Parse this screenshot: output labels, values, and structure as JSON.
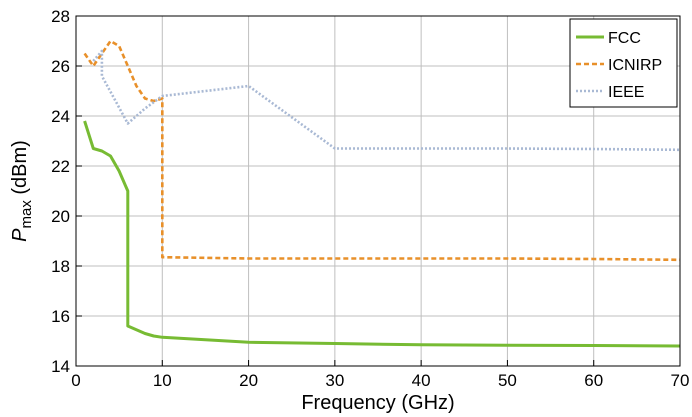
{
  "chart_data": {
    "type": "line",
    "xlabel": "Frequency (GHz)",
    "ylabel_main": "P",
    "ylabel_sub": "max",
    "ylabel_unit": " (dBm)",
    "xlim": [
      0,
      70
    ],
    "ylim": [
      14,
      28
    ],
    "x_ticks": [
      "0",
      "10",
      "20",
      "30",
      "40",
      "50",
      "60",
      "70"
    ],
    "y_ticks": [
      "14",
      "16",
      "18",
      "20",
      "22",
      "24",
      "26",
      "28"
    ],
    "grid": true,
    "legend_position": "top-right",
    "series": [
      {
        "name": "FCC",
        "color": "#77bb33",
        "style": "solid",
        "points": [
          [
            1,
            23.8
          ],
          [
            2,
            22.7
          ],
          [
            3,
            22.6
          ],
          [
            4,
            22.4
          ],
          [
            5,
            21.8
          ],
          [
            6,
            21.0
          ],
          [
            6,
            15.6
          ],
          [
            7,
            15.45
          ],
          [
            8,
            15.3
          ],
          [
            9,
            15.2
          ],
          [
            10,
            15.15
          ],
          [
            15,
            15.05
          ],
          [
            20,
            14.95
          ],
          [
            30,
            14.9
          ],
          [
            40,
            14.85
          ],
          [
            50,
            14.83
          ],
          [
            60,
            14.82
          ],
          [
            70,
            14.8
          ]
        ]
      },
      {
        "name": "ICNIRP",
        "color": "#e8902a",
        "style": "dashed",
        "points": [
          [
            1,
            26.5
          ],
          [
            2,
            26.0
          ],
          [
            3,
            26.5
          ],
          [
            4,
            27.0
          ],
          [
            5,
            26.8
          ],
          [
            6,
            26.0
          ],
          [
            7,
            25.2
          ],
          [
            8,
            24.7
          ],
          [
            9,
            24.6
          ],
          [
            10,
            24.7
          ],
          [
            10,
            18.35
          ],
          [
            20,
            18.3
          ],
          [
            30,
            18.3
          ],
          [
            40,
            18.3
          ],
          [
            50,
            18.3
          ],
          [
            60,
            18.28
          ],
          [
            70,
            18.25
          ]
        ]
      },
      {
        "name": "IEEE",
        "color": "#a9b9d4",
        "style": "dotted",
        "points": [
          [
            2,
            26.2
          ],
          [
            3,
            26.6
          ],
          [
            3,
            25.6
          ],
          [
            6,
            23.7
          ],
          [
            8,
            24.3
          ],
          [
            10,
            24.8
          ],
          [
            20,
            25.2
          ],
          [
            30,
            22.7
          ],
          [
            40,
            22.7
          ],
          [
            50,
            22.7
          ],
          [
            60,
            22.68
          ],
          [
            70,
            22.65
          ]
        ]
      }
    ]
  }
}
